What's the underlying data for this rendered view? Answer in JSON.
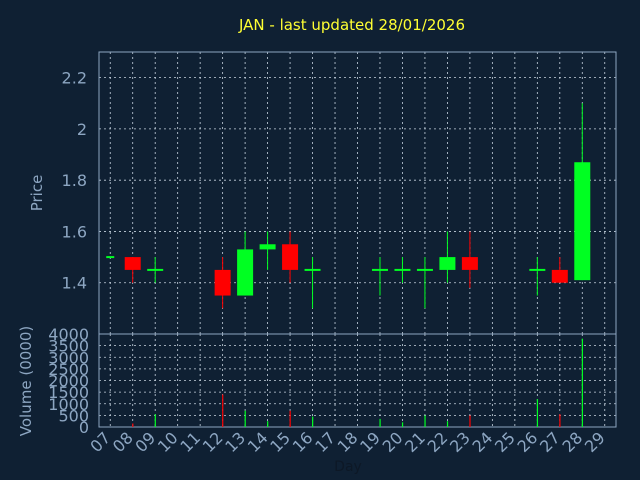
{
  "chart_data": [
    {
      "type": "candlestick",
      "title": "JAN - last updated 28/01/2026",
      "ylabel": "Price",
      "ylim": [
        1.2,
        2.3
      ],
      "yticks": [
        "1.4",
        "1.6",
        "1.8",
        "2",
        "2.2"
      ],
      "yticks_values": [
        1.4,
        1.6,
        1.8,
        2.0,
        2.2
      ],
      "grid": true,
      "up_color": "#00ff22",
      "down_color": "#ff0000",
      "candles": [
        {
          "day": 7,
          "open": 1.5,
          "high": 1.5,
          "low": 1.5,
          "close": 1.5
        },
        {
          "day": 8,
          "open": 1.5,
          "high": 1.5,
          "low": 1.4,
          "close": 1.45
        },
        {
          "day": 9,
          "open": 1.45,
          "high": 1.5,
          "low": 1.4,
          "close": 1.45
        },
        {
          "day": 12,
          "open": 1.45,
          "high": 1.5,
          "low": 1.3,
          "close": 1.35
        },
        {
          "day": 13,
          "open": 1.35,
          "high": 1.6,
          "low": 1.35,
          "close": 1.53
        },
        {
          "day": 14,
          "open": 1.53,
          "high": 1.6,
          "low": 1.45,
          "close": 1.55
        },
        {
          "day": 15,
          "open": 1.55,
          "high": 1.6,
          "low": 1.4,
          "close": 1.45
        },
        {
          "day": 16,
          "open": 1.45,
          "high": 1.5,
          "low": 1.3,
          "close": 1.45
        },
        {
          "day": 19,
          "open": 1.45,
          "high": 1.5,
          "low": 1.35,
          "close": 1.45
        },
        {
          "day": 20,
          "open": 1.45,
          "high": 1.5,
          "low": 1.4,
          "close": 1.45
        },
        {
          "day": 21,
          "open": 1.45,
          "high": 1.5,
          "low": 1.3,
          "close": 1.45
        },
        {
          "day": 22,
          "open": 1.45,
          "high": 1.6,
          "low": 1.4,
          "close": 1.5
        },
        {
          "day": 23,
          "open": 1.5,
          "high": 1.6,
          "low": 1.38,
          "close": 1.45
        },
        {
          "day": 26,
          "open": 1.45,
          "high": 1.5,
          "low": 1.35,
          "close": 1.45
        },
        {
          "day": 27,
          "open": 1.45,
          "high": 1.5,
          "low": 1.4,
          "close": 1.4
        },
        {
          "day": 28,
          "open": 1.41,
          "high": 2.1,
          "low": 1.41,
          "close": 1.87
        }
      ]
    },
    {
      "type": "bar",
      "ylabel": "Volume (0000)",
      "xlabel": "Day",
      "ylim": [
        0,
        4000
      ],
      "yticks": [
        "0",
        "500",
        "1000",
        "1500",
        "2000",
        "2500",
        "3000",
        "3500",
        "4000"
      ],
      "yticks_values": [
        0,
        500,
        1000,
        1500,
        2000,
        2500,
        3000,
        3500,
        4000
      ],
      "categories": [
        "07",
        "08",
        "09",
        "10",
        "11",
        "12",
        "13",
        "14",
        "15",
        "16",
        "17",
        "18",
        "19",
        "20",
        "21",
        "22",
        "23",
        "24",
        "25",
        "26",
        "27",
        "28",
        "29"
      ],
      "bars": [
        {
          "day": 8,
          "value": 150,
          "color": "#ff0000"
        },
        {
          "day": 9,
          "value": 550,
          "color": "#00ff22"
        },
        {
          "day": 12,
          "value": 1400,
          "color": "#ff0000"
        },
        {
          "day": 13,
          "value": 700,
          "color": "#00ff22"
        },
        {
          "day": 14,
          "value": 250,
          "color": "#00ff22"
        },
        {
          "day": 15,
          "value": 700,
          "color": "#ff0000"
        },
        {
          "day": 16,
          "value": 450,
          "color": "#00ff22"
        },
        {
          "day": 19,
          "value": 350,
          "color": "#00ff22"
        },
        {
          "day": 20,
          "value": 200,
          "color": "#00ff22"
        },
        {
          "day": 21,
          "value": 500,
          "color": "#00ff22"
        },
        {
          "day": 22,
          "value": 250,
          "color": "#00ff22"
        },
        {
          "day": 23,
          "value": 500,
          "color": "#ff0000"
        },
        {
          "day": 26,
          "value": 1200,
          "color": "#00ff22"
        },
        {
          "day": 27,
          "value": 550,
          "color": "#ff0000"
        },
        {
          "day": 28,
          "value": 3800,
          "color": "#00ff22"
        }
      ]
    }
  ]
}
